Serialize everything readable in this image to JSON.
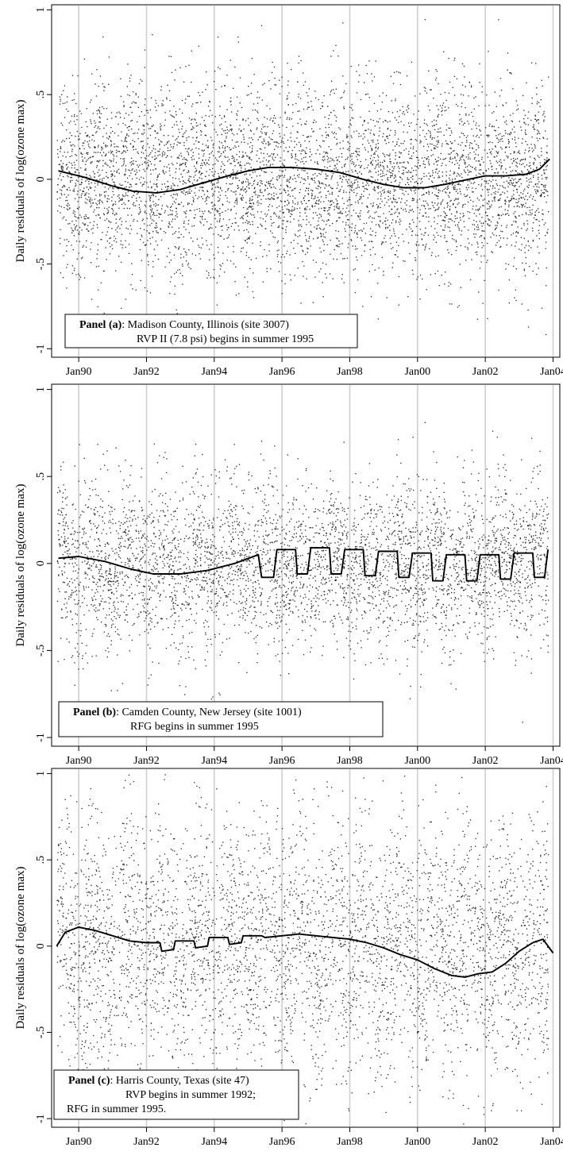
{
  "chart_data": [
    {
      "type": "scatter",
      "ylabel": "Daily residuals of log(ozone max)",
      "xlim": [
        1989.2,
        2004.2
      ],
      "ylim": [
        -1.05,
        1.03
      ],
      "grid": {
        "vertical": true,
        "horizontal": false
      },
      "x_ticks": [
        {
          "value": 1990,
          "label": "Jan90"
        },
        {
          "value": 1992,
          "label": "Jan92"
        },
        {
          "value": 1994,
          "label": "Jan94"
        },
        {
          "value": 1996,
          "label": "Jan96"
        },
        {
          "value": 1998,
          "label": "Jan98"
        },
        {
          "value": 2000,
          "label": "Jan00"
        },
        {
          "value": 2002,
          "label": "Jan02"
        },
        {
          "value": 2004,
          "label": "Jan04"
        }
      ],
      "y_ticks": [
        {
          "value": 1,
          "label": "1"
        },
        {
          "value": 0.5,
          "label": ".5"
        },
        {
          "value": 0,
          "label": "0"
        },
        {
          "value": -0.5,
          "label": "-.5"
        },
        {
          "value": -1,
          "label": "-1"
        }
      ],
      "annotation": {
        "bold": "Panel (a)",
        "line1": ": Madison County, Illinois (site 3007)",
        "line2": "RVP II (7.8 psi) begins in summer 1995",
        "placement": "bottom-left"
      },
      "scatter_density": {
        "spread": 0.28,
        "season_amplitude": 0.05,
        "points_per_year": 360
      },
      "series": [
        {
          "type": "line",
          "x": [
            1989.4,
            1990.2,
            1991.0,
            1991.6,
            1992.3,
            1993.0,
            1993.7,
            1994.4,
            1995.0,
            1995.6,
            1996.3,
            1997.0,
            1997.7,
            1998.4,
            1999.0,
            1999.6,
            2000.2,
            2000.8,
            2001.5,
            2002.0,
            2002.6,
            2003.2,
            2003.6,
            2003.9
          ],
          "y": [
            0.05,
            0.01,
            -0.04,
            -0.07,
            -0.08,
            -0.06,
            -0.02,
            0.02,
            0.05,
            0.07,
            0.07,
            0.06,
            0.04,
            0.0,
            -0.03,
            -0.05,
            -0.05,
            -0.03,
            0.0,
            0.02,
            0.02,
            0.03,
            0.06,
            0.12
          ]
        }
      ]
    },
    {
      "type": "scatter",
      "ylabel": "Daily residuals of log(ozone max)",
      "xlim": [
        1989.2,
        2004.2
      ],
      "ylim": [
        -1.05,
        1.03
      ],
      "grid": {
        "vertical": true,
        "horizontal": false
      },
      "x_ticks": [
        {
          "value": 1990,
          "label": "Jan90"
        },
        {
          "value": 1992,
          "label": "Jan92"
        },
        {
          "value": 1994,
          "label": "Jan94"
        },
        {
          "value": 1996,
          "label": "Jan96"
        },
        {
          "value": 1998,
          "label": "Jan98"
        },
        {
          "value": 2000,
          "label": "Jan00"
        },
        {
          "value": 2002,
          "label": "Jan02"
        },
        {
          "value": 2004,
          "label": "Jan04"
        }
      ],
      "y_ticks": [
        {
          "value": 1,
          "label": "1"
        },
        {
          "value": 0.5,
          "label": ".5"
        },
        {
          "value": 0,
          "label": "0"
        },
        {
          "value": -0.5,
          "label": "-.5"
        },
        {
          "value": -1,
          "label": "-1"
        }
      ],
      "annotation": {
        "bold": "Panel (b)",
        "line1": ": Camden County, New Jersey (site 1001)",
        "line2": "RFG begins in summer 1995",
        "placement": "bottom-left"
      },
      "scatter_density": {
        "spread": 0.24,
        "season_amplitude": 0.08,
        "points_per_year": 300
      },
      "series": [
        {
          "type": "line",
          "x": [
            1989.4,
            1990.0,
            1990.8,
            1991.5,
            1992.2,
            1993.0,
            1993.8,
            1994.6,
            1995.3,
            1995.4,
            1995.75,
            1995.85,
            1996.4,
            1996.45,
            1996.75,
            1996.85,
            1997.4,
            1997.45,
            1997.75,
            1997.85,
            1998.4,
            1998.45,
            1998.75,
            1998.85,
            1999.4,
            1999.45,
            1999.75,
            1999.85,
            2000.4,
            2000.45,
            2000.75,
            2000.85,
            2001.4,
            2001.45,
            2001.75,
            2001.85,
            2002.4,
            2002.45,
            2002.75,
            2002.85,
            2003.4,
            2003.45,
            2003.75,
            2003.85
          ],
          "y": [
            0.03,
            0.04,
            0.01,
            -0.03,
            -0.06,
            -0.06,
            -0.04,
            0.0,
            0.05,
            -0.08,
            -0.08,
            0.08,
            0.08,
            -0.06,
            -0.06,
            0.09,
            0.09,
            -0.06,
            -0.06,
            0.08,
            0.08,
            -0.07,
            -0.07,
            0.07,
            0.07,
            -0.08,
            -0.08,
            0.06,
            0.06,
            -0.1,
            -0.1,
            0.05,
            0.05,
            -0.1,
            -0.1,
            0.05,
            0.05,
            -0.09,
            -0.09,
            0.06,
            0.06,
            -0.08,
            -0.08,
            0.08
          ]
        }
      ]
    },
    {
      "type": "scatter",
      "ylabel": "Daily residuals of log(ozone max)",
      "xlim": [
        1989.2,
        2004.2
      ],
      "ylim": [
        -1.05,
        1.03
      ],
      "grid": {
        "vertical": true,
        "horizontal": false
      },
      "x_ticks": [
        {
          "value": 1990,
          "label": "Jan90"
        },
        {
          "value": 1992,
          "label": "Jan92"
        },
        {
          "value": 1994,
          "label": "Jan94"
        },
        {
          "value": 1996,
          "label": "Jan96"
        },
        {
          "value": 1998,
          "label": "Jan98"
        },
        {
          "value": 2000,
          "label": "Jan00"
        },
        {
          "value": 2002,
          "label": "Jan02"
        },
        {
          "value": 2004,
          "label": "Jan04"
        }
      ],
      "y_ticks": [
        {
          "value": 1,
          "label": "1"
        },
        {
          "value": 0.5,
          "label": ".5"
        },
        {
          "value": 0,
          "label": "0"
        },
        {
          "value": -0.5,
          "label": "-.5"
        },
        {
          "value": -1,
          "label": "-1"
        }
      ],
      "annotation": {
        "bold": "Panel (c)",
        "line1": ": Harris County, Texas (site 47)",
        "line2": "RVP begins in summer 1992;",
        "line3": "RFG in summer 1995.",
        "placement": "bottom-left"
      },
      "scatter_density": {
        "spread": 0.38,
        "season_amplitude": 0.12,
        "points_per_year": 300
      },
      "series": [
        {
          "type": "line",
          "x": [
            1989.35,
            1989.6,
            1990.0,
            1990.5,
            1991.0,
            1991.5,
            1992.0,
            1992.4,
            1992.45,
            1992.8,
            1992.85,
            1993.4,
            1993.45,
            1993.8,
            1993.85,
            1994.4,
            1994.45,
            1994.8,
            1994.85,
            1995.4,
            1995.5,
            1996.0,
            1996.5,
            1997.0,
            1997.5,
            1998.0,
            1998.5,
            1999.0,
            1999.5,
            2000.0,
            2000.5,
            2001.0,
            2001.4,
            2001.8,
            2002.2,
            2002.6,
            2003.0,
            2003.4,
            2003.7,
            2004.0
          ],
          "y": [
            0.0,
            0.08,
            0.11,
            0.09,
            0.06,
            0.03,
            0.02,
            0.02,
            -0.03,
            -0.02,
            0.03,
            0.03,
            -0.01,
            0.0,
            0.05,
            0.05,
            0.01,
            0.02,
            0.06,
            0.06,
            0.05,
            0.06,
            0.07,
            0.06,
            0.05,
            0.04,
            0.02,
            -0.01,
            -0.05,
            -0.08,
            -0.13,
            -0.17,
            -0.18,
            -0.16,
            -0.15,
            -0.1,
            -0.03,
            0.02,
            0.04,
            -0.04
          ]
        }
      ]
    }
  ]
}
